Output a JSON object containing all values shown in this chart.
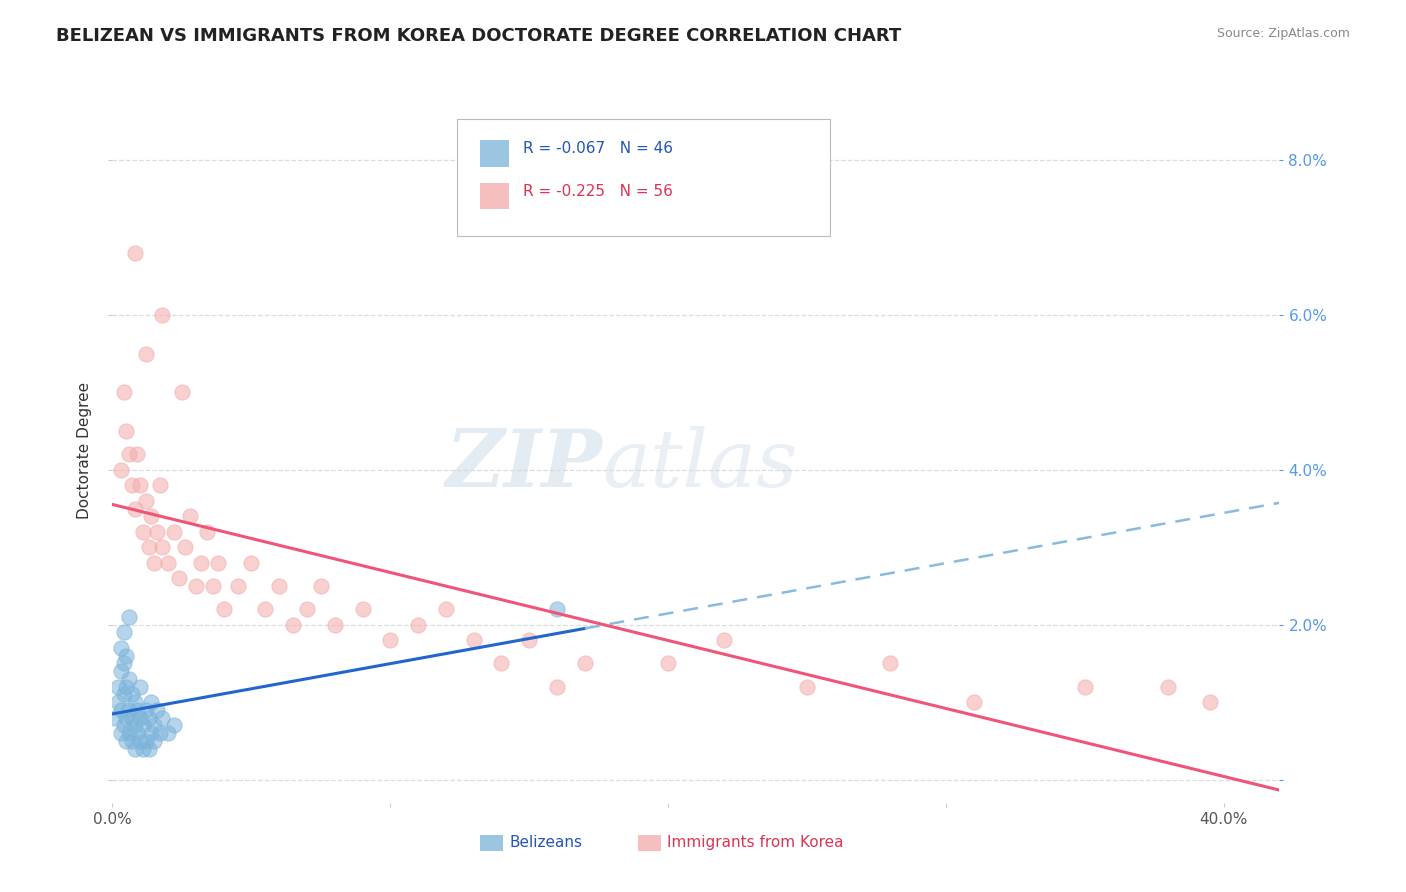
{
  "title": "BELIZEAN VS IMMIGRANTS FROM KOREA DOCTORATE DEGREE CORRELATION CHART",
  "source": "Source: ZipAtlas.com",
  "ylabel": "Doctorate Degree",
  "xlim": [
    0.0,
    0.42
  ],
  "ylim": [
    -0.003,
    0.088
  ],
  "blue_color": "#7AB3D9",
  "pink_color": "#F4AAAA",
  "blue_R": -0.067,
  "blue_N": 46,
  "pink_R": -0.225,
  "pink_N": 56,
  "watermark_zip": "ZIP",
  "watermark_atlas": "atlas",
  "background_color": "#FFFFFF",
  "grid_color": "#DDDDDD",
  "title_fontsize": 13,
  "axis_label_fontsize": 11,
  "tick_fontsize": 11,
  "blue_scatter_x": [
    0.001,
    0.002,
    0.002,
    0.003,
    0.003,
    0.003,
    0.004,
    0.004,
    0.004,
    0.005,
    0.005,
    0.005,
    0.005,
    0.006,
    0.006,
    0.006,
    0.007,
    0.007,
    0.007,
    0.008,
    0.008,
    0.008,
    0.009,
    0.009,
    0.01,
    0.01,
    0.01,
    0.011,
    0.011,
    0.012,
    0.012,
    0.013,
    0.013,
    0.014,
    0.014,
    0.015,
    0.015,
    0.016,
    0.017,
    0.018,
    0.02,
    0.022,
    0.16,
    0.003,
    0.004,
    0.006
  ],
  "blue_scatter_y": [
    0.008,
    0.012,
    0.01,
    0.006,
    0.009,
    0.014,
    0.007,
    0.011,
    0.015,
    0.005,
    0.008,
    0.012,
    0.016,
    0.006,
    0.009,
    0.013,
    0.005,
    0.008,
    0.011,
    0.004,
    0.007,
    0.01,
    0.006,
    0.009,
    0.005,
    0.008,
    0.012,
    0.004,
    0.007,
    0.005,
    0.009,
    0.004,
    0.008,
    0.006,
    0.01,
    0.005,
    0.007,
    0.009,
    0.006,
    0.008,
    0.006,
    0.007,
    0.022,
    0.017,
    0.019,
    0.021
  ],
  "pink_scatter_x": [
    0.003,
    0.004,
    0.005,
    0.006,
    0.007,
    0.008,
    0.009,
    0.01,
    0.011,
    0.012,
    0.013,
    0.014,
    0.015,
    0.016,
    0.017,
    0.018,
    0.02,
    0.022,
    0.024,
    0.026,
    0.028,
    0.03,
    0.032,
    0.034,
    0.036,
    0.038,
    0.04,
    0.045,
    0.05,
    0.055,
    0.06,
    0.065,
    0.07,
    0.075,
    0.08,
    0.09,
    0.1,
    0.11,
    0.12,
    0.13,
    0.14,
    0.15,
    0.16,
    0.17,
    0.2,
    0.22,
    0.25,
    0.28,
    0.31,
    0.35,
    0.38,
    0.395,
    0.008,
    0.012,
    0.018,
    0.025
  ],
  "pink_scatter_y": [
    0.04,
    0.05,
    0.045,
    0.042,
    0.038,
    0.035,
    0.042,
    0.038,
    0.032,
    0.036,
    0.03,
    0.034,
    0.028,
    0.032,
    0.038,
    0.03,
    0.028,
    0.032,
    0.026,
    0.03,
    0.034,
    0.025,
    0.028,
    0.032,
    0.025,
    0.028,
    0.022,
    0.025,
    0.028,
    0.022,
    0.025,
    0.02,
    0.022,
    0.025,
    0.02,
    0.022,
    0.018,
    0.02,
    0.022,
    0.018,
    0.015,
    0.018,
    0.012,
    0.015,
    0.015,
    0.018,
    0.012,
    0.015,
    0.01,
    0.012,
    0.012,
    0.01,
    0.068,
    0.055,
    0.06,
    0.05
  ]
}
